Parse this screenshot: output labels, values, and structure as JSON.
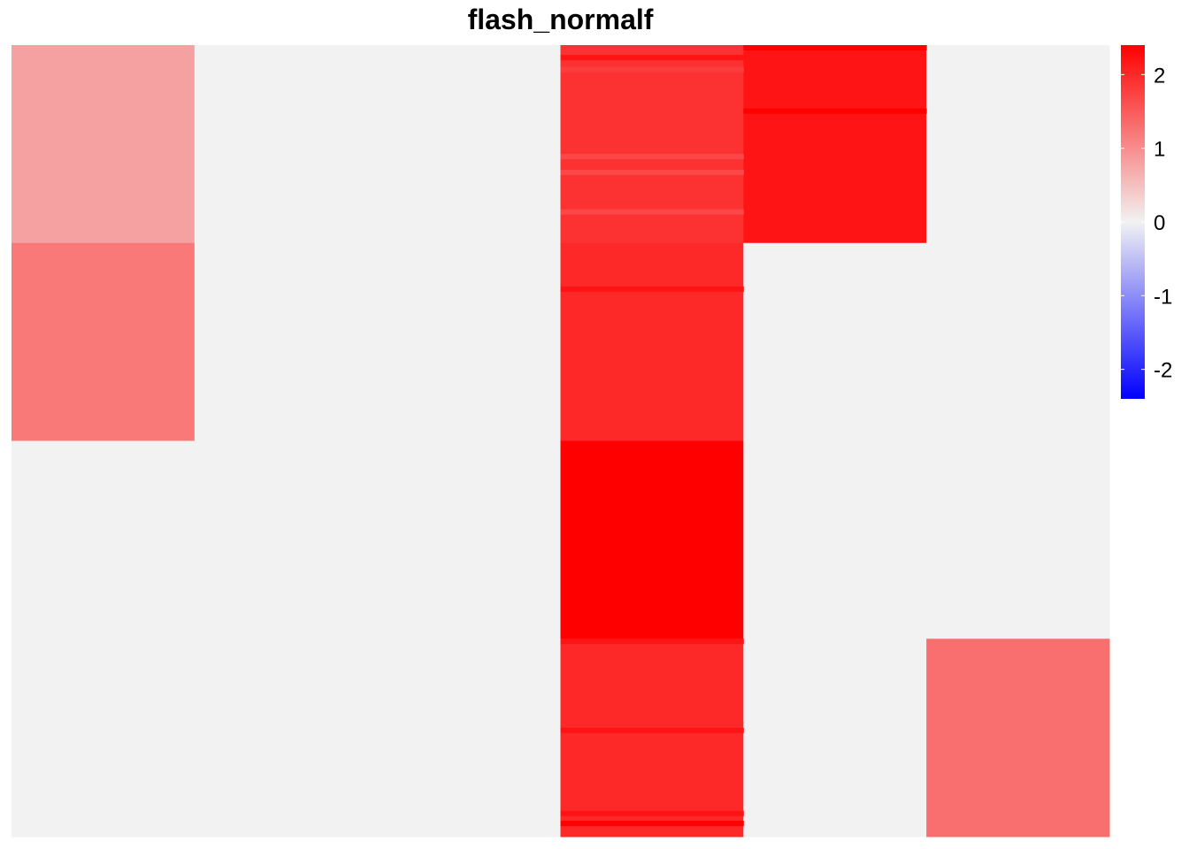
{
  "chart_data": {
    "type": "heatmap",
    "title": "flash_normalf",
    "xlabel": "",
    "ylabel": "",
    "columns": 6,
    "rows": 4,
    "cells": [
      [
        0.8,
        0.0,
        0.0,
        1.9,
        2.2,
        0.0
      ],
      [
        1.2,
        0.0,
        0.0,
        2.0,
        0.0,
        0.0
      ],
      [
        0.0,
        0.0,
        0.0,
        2.4,
        0.0,
        0.0
      ],
      [
        0.0,
        0.0,
        0.0,
        2.0,
        0.0,
        1.3
      ]
    ],
    "stripes": [
      {
        "col": 3,
        "row": 0,
        "offsets": [
          0.05,
          0.11,
          0.55,
          0.63,
          0.83
        ],
        "values": [
          2.2,
          1.8,
          1.7,
          1.7,
          1.7
        ]
      },
      {
        "col": 4,
        "row": 0,
        "offsets": [
          0.0,
          0.32
        ],
        "values": [
          2.4,
          2.4
        ]
      },
      {
        "col": 3,
        "row": 1,
        "offsets": [
          0.22
        ],
        "values": [
          2.2
        ]
      },
      {
        "col": 3,
        "row": 3,
        "offsets": [
          0.0,
          0.45,
          0.87
        ],
        "values": [
          2.2,
          2.2,
          2.2
        ]
      },
      {
        "col": 3,
        "row": 3,
        "offsets": [
          0.92
        ],
        "values": [
          2.4
        ]
      }
    ],
    "color_scale": {
      "min": -2.4,
      "max": 2.4,
      "low": "#0000ff",
      "mid": "#f2f2f2",
      "high": "#ff0000"
    },
    "legend": {
      "position": "right",
      "ticks": [
        "2",
        "1",
        "0",
        "-1",
        "-2"
      ],
      "tick_values": [
        2,
        1,
        0,
        -1,
        -2
      ]
    },
    "grid": false
  }
}
